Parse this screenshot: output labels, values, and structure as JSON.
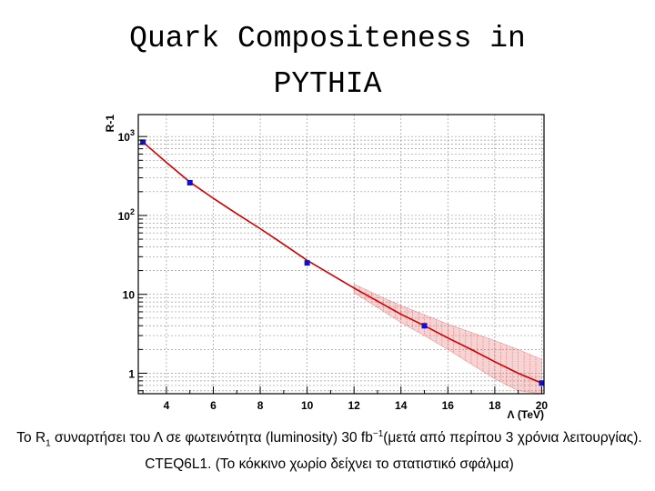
{
  "slide": {
    "title_line1": "Quark Compositeness in",
    "title_line2": "PYTHIA",
    "caption": {
      "part1": "Το R",
      "sub": "1",
      "part2": " συναρτήσει του Λ σε φωτεινότητα (luminosity) 30 fb",
      "sup": "−1",
      "part3": "(μετά από περίπου 3 χρόνια λειτουργίας). CTEQ6L1. (Το κόκκινο χωρίο δείχνει το στατιστικό σφάλμα)"
    }
  },
  "chart_data": {
    "type": "scatter",
    "title": "",
    "xlabel": "Λ (TeV)",
    "ylabel": "R-1",
    "xlim": [
      2.8,
      20.1
    ],
    "ylim": [
      0.55,
      1900
    ],
    "y_scale": "log",
    "grid": true,
    "x_ticks": [
      4,
      6,
      8,
      10,
      12,
      14,
      16,
      18,
      20
    ],
    "y_ticks": [
      {
        "value": 1,
        "base": "1",
        "exp": ""
      },
      {
        "value": 10,
        "base": "10",
        "exp": ""
      },
      {
        "value": 100,
        "base": "10",
        "exp": "2"
      },
      {
        "value": 1000,
        "base": "10",
        "exp": "3"
      }
    ],
    "points": {
      "x": [
        3,
        5,
        10,
        15,
        20
      ],
      "y": [
        850,
        260,
        25,
        4.0,
        0.75
      ],
      "color": "#1010cc"
    },
    "fit_curve": {
      "color": "#cc0000",
      "x": [
        3,
        4,
        5,
        6,
        7,
        8,
        9,
        10,
        11,
        12,
        13,
        14,
        15,
        16,
        17,
        18,
        19,
        20
      ],
      "y": [
        850,
        470,
        265,
        165,
        105,
        68,
        43,
        27,
        18,
        12,
        8.2,
        5.6,
        4.0,
        2.8,
        2.0,
        1.4,
        1.0,
        0.75
      ]
    },
    "error_band": {
      "color": "#e05050",
      "x": [
        12,
        13,
        14,
        15,
        16,
        17,
        18,
        19,
        20
      ],
      "y_low": [
        10.5,
        6.8,
        4.4,
        3.0,
        2.0,
        1.3,
        0.85,
        0.6,
        0.55
      ],
      "y_high": [
        13.5,
        9.8,
        7.2,
        5.5,
        4.2,
        3.3,
        2.6,
        2.0,
        1.5
      ]
    }
  }
}
